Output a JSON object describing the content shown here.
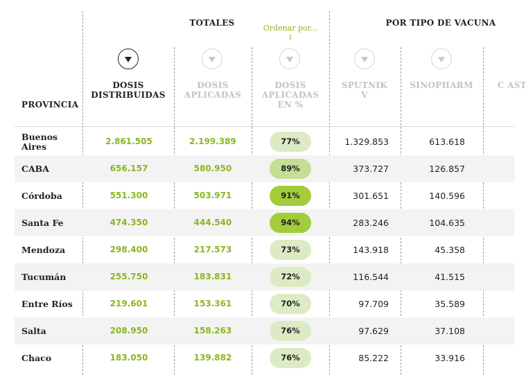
{
  "headers": {
    "totales": "TOTALES",
    "por_tipo": "POR TIPO DE VACUNA",
    "order_hint": "Ordenar por...",
    "order_arrow": "↓",
    "provincia": "PROVINCIA",
    "dosis_distribuidas": "DOSIS DISTRIBUIDAS",
    "dosis_aplicadas": "DOSIS APLICADAS",
    "dosis_aplicadas_pct": "DOSIS APLICADAS EN %",
    "sputnik": "SPUTNIK V",
    "sinopharm": "SINOPHARM",
    "astra": "C ASTR"
  },
  "colors": {
    "accent_green": "#8ab61e",
    "pill_low": "#dcebc4",
    "pill_mid": "#c4de93",
    "pill_high": "#a3cc3b"
  },
  "rows": [
    {
      "provincia": "Buenos Aires",
      "distribuidas": "2.861.505",
      "aplicadas": "2.199.389",
      "pct": "77%",
      "pct_value": 77,
      "sputnik": "1.329.853",
      "sinopharm": "613.618"
    },
    {
      "provincia": "CABA",
      "distribuidas": "656.157",
      "aplicadas": "580.950",
      "pct": "89%",
      "pct_value": 89,
      "sputnik": "373.727",
      "sinopharm": "126.857"
    },
    {
      "provincia": "Córdoba",
      "distribuidas": "551.300",
      "aplicadas": "503.971",
      "pct": "91%",
      "pct_value": 91,
      "sputnik": "301.651",
      "sinopharm": "140.596"
    },
    {
      "provincia": "Santa Fe",
      "distribuidas": "474.350",
      "aplicadas": "444.540",
      "pct": "94%",
      "pct_value": 94,
      "sputnik": "283.246",
      "sinopharm": "104.635"
    },
    {
      "provincia": "Mendoza",
      "distribuidas": "298.400",
      "aplicadas": "217.573",
      "pct": "73%",
      "pct_value": 73,
      "sputnik": "143.918",
      "sinopharm": "45.358"
    },
    {
      "provincia": "Tucumán",
      "distribuidas": "255.750",
      "aplicadas": "183.831",
      "pct": "72%",
      "pct_value": 72,
      "sputnik": "116.544",
      "sinopharm": "41.515"
    },
    {
      "provincia": "Entre Ríos",
      "distribuidas": "219.601",
      "aplicadas": "153.361",
      "pct": "70%",
      "pct_value": 70,
      "sputnik": "97.709",
      "sinopharm": "35.589"
    },
    {
      "provincia": "Salta",
      "distribuidas": "208.950",
      "aplicadas": "158.263",
      "pct": "76%",
      "pct_value": 76,
      "sputnik": "97.629",
      "sinopharm": "37.108"
    },
    {
      "provincia": "Chaco",
      "distribuidas": "183.050",
      "aplicadas": "139.882",
      "pct": "76%",
      "pct_value": 76,
      "sputnik": "85.222",
      "sinopharm": "33.916"
    }
  ]
}
